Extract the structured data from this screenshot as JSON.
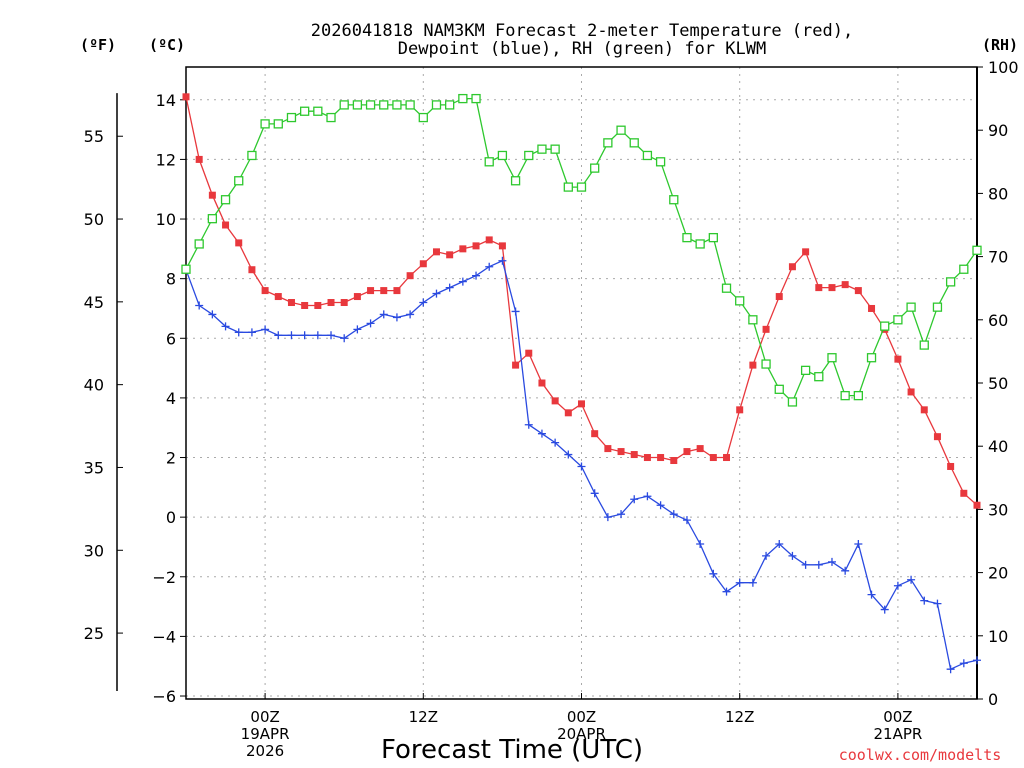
{
  "chart_data": {
    "type": "line",
    "title": "2026041818 NAM3KM Forecast 2-meter Temperature (red),",
    "subtitle": "Dewpoint (blue), RH (green) for KLWM",
    "xlabel": "Forecast Time (UTC)",
    "units": {
      "fahrenheit": "(ºF)",
      "celsius": "(ºC)",
      "rh": "(RH)"
    },
    "x_hours": [
      0,
      1,
      2,
      3,
      4,
      5,
      6,
      7,
      8,
      9,
      10,
      11,
      12,
      13,
      14,
      15,
      16,
      17,
      18,
      19,
      20,
      21,
      22,
      23,
      24,
      25,
      26,
      27,
      28,
      29,
      30,
      31,
      32,
      33,
      34,
      35,
      36,
      37,
      38,
      39,
      40,
      41,
      42,
      43,
      44,
      45,
      46,
      47,
      48,
      49,
      50,
      51,
      52,
      53,
      54,
      55,
      56,
      57,
      58,
      59,
      60
    ],
    "xlim": [
      0,
      60
    ],
    "x_ticks": [
      {
        "hour": 6,
        "label": "00Z",
        "sub1": "19APR",
        "sub2": "2026"
      },
      {
        "hour": 18,
        "label": "12Z",
        "sub1": "",
        "sub2": ""
      },
      {
        "hour": 30,
        "label": "00Z",
        "sub1": "20APR",
        "sub2": ""
      },
      {
        "hour": 42,
        "label": "12Z",
        "sub1": "",
        "sub2": ""
      },
      {
        "hour": 54,
        "label": "00Z",
        "sub1": "21APR",
        "sub2": ""
      }
    ],
    "ylim_celsius": [
      -6.1,
      15.1
    ],
    "celsius_ticks": [
      -6,
      -4,
      -2,
      0,
      2,
      4,
      6,
      8,
      10,
      12,
      14
    ],
    "fahrenheit_ticks": [
      25,
      30,
      35,
      40,
      45,
      50,
      55
    ],
    "rh_ticks": [
      0,
      10,
      20,
      30,
      40,
      50,
      60,
      70,
      80,
      90,
      100
    ],
    "ylim_rh": [
      0,
      100
    ],
    "series": [
      {
        "name": "Temperature",
        "units": "C",
        "color": "#e8383d",
        "marker": "filled-square",
        "values": [
          14.1,
          12.0,
          10.8,
          9.8,
          9.2,
          8.3,
          7.6,
          7.4,
          7.2,
          7.1,
          7.1,
          7.2,
          7.2,
          7.4,
          7.6,
          7.6,
          7.6,
          8.1,
          8.5,
          8.9,
          8.8,
          9.0,
          9.1,
          9.3,
          9.1,
          5.1,
          5.5,
          4.5,
          3.9,
          3.5,
          3.8,
          2.8,
          2.3,
          2.2,
          2.1,
          2.0,
          2.0,
          1.9,
          2.2,
          2.3,
          2.0,
          2.0,
          3.6,
          5.1,
          6.3,
          7.4,
          8.4,
          8.9,
          7.7,
          7.7,
          7.8,
          7.6,
          7.0,
          6.3,
          5.3,
          4.2,
          3.6,
          2.7,
          1.7,
          0.8,
          0.4
        ]
      },
      {
        "name": "Dewpoint",
        "units": "C",
        "color": "#2a4ae0",
        "marker": "plus",
        "values": [
          8.3,
          7.1,
          6.8,
          6.4,
          6.2,
          6.2,
          6.3,
          6.1,
          6.1,
          6.1,
          6.1,
          6.1,
          6.0,
          6.3,
          6.5,
          6.8,
          6.7,
          6.8,
          7.2,
          7.5,
          7.7,
          7.9,
          8.1,
          8.4,
          8.6,
          6.9,
          3.1,
          2.8,
          2.5,
          2.1,
          1.7,
          0.8,
          0.0,
          0.1,
          0.6,
          0.7,
          0.4,
          0.1,
          -0.1,
          -0.9,
          -1.9,
          -2.5,
          -2.2,
          -2.2,
          -1.3,
          -0.9,
          -1.3,
          -1.6,
          -1.6,
          -1.5,
          -1.8,
          -0.9,
          -2.6,
          -3.1,
          -2.3,
          -2.1,
          -2.8,
          -2.9,
          -5.1,
          -4.9,
          -4.8
        ]
      },
      {
        "name": "RH",
        "units": "%",
        "color": "#2ec82e",
        "marker": "open-square",
        "values": [
          68,
          72,
          76,
          79,
          82,
          86,
          91,
          91,
          92,
          93,
          93,
          92,
          94,
          94,
          94,
          94,
          94,
          94,
          92,
          94,
          94,
          95,
          95,
          85,
          86,
          82,
          86,
          87,
          87,
          81,
          81,
          84,
          88,
          90,
          88,
          86,
          85,
          79,
          73,
          72,
          73,
          65,
          63,
          60,
          53,
          49,
          47,
          52,
          51,
          54,
          48,
          48,
          54,
          59,
          60,
          62,
          56,
          62,
          66,
          68,
          71
        ]
      }
    ],
    "grid": "dotted",
    "credit": "coolwx.com/modelts"
  }
}
